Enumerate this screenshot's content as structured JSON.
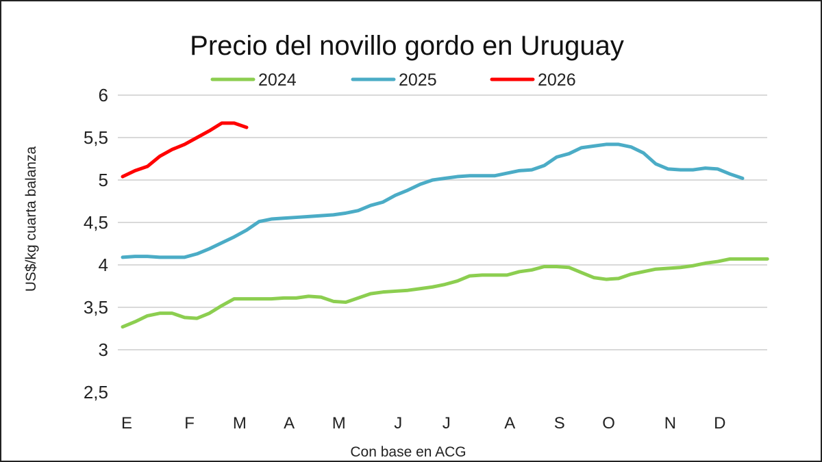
{
  "chart_data": {
    "type": "line",
    "title": "Precio del novillo gordo en Uruguay",
    "xlabel": "Con base en ACG",
    "ylabel": "US$/kg cuarta balanza",
    "ylim": [
      2.5,
      6
    ],
    "y_ticks": [
      "2,5",
      "3",
      "3,5",
      "4",
      "4,5",
      "5",
      "5,5",
      "6"
    ],
    "y_tick_values": [
      2.5,
      3,
      3.5,
      4,
      4.5,
      5,
      5.5,
      6
    ],
    "x_ticks": [
      {
        "label": "E",
        "week": 0
      },
      {
        "label": "F",
        "week": 5.1
      },
      {
        "label": "M",
        "week": 9
      },
      {
        "label": "A",
        "week": 13.1
      },
      {
        "label": "M",
        "week": 17
      },
      {
        "label": "J",
        "week": 22
      },
      {
        "label": "J",
        "week": 25.9
      },
      {
        "label": "A",
        "week": 30.9
      },
      {
        "label": "S",
        "week": 34.9
      },
      {
        "label": "O",
        "week": 38.8
      },
      {
        "label": "N",
        "week": 43.8
      },
      {
        "label": "D",
        "week": 47.8
      }
    ],
    "grid": true,
    "legend": "top",
    "series": [
      {
        "name": "2024",
        "color": "#8cce50",
        "values": [
          3.27,
          3.33,
          3.4,
          3.43,
          3.43,
          3.38,
          3.37,
          3.43,
          3.52,
          3.6,
          3.6,
          3.6,
          3.6,
          3.61,
          3.61,
          3.63,
          3.62,
          3.57,
          3.56,
          3.61,
          3.66,
          3.68,
          3.69,
          3.7,
          3.72,
          3.74,
          3.77,
          3.81,
          3.87,
          3.88,
          3.88,
          3.88,
          3.92,
          3.94,
          3.98,
          3.98,
          3.97,
          3.91,
          3.85,
          3.83,
          3.84,
          3.89,
          3.92,
          3.95,
          3.96,
          3.97,
          3.99,
          4.02,
          4.04,
          4.07,
          4.07,
          4.07,
          4.07
        ]
      },
      {
        "name": "2025",
        "color": "#4bacc6",
        "values": [
          4.09,
          4.1,
          4.1,
          4.09,
          4.09,
          4.09,
          4.13,
          4.19,
          4.26,
          4.33,
          4.41,
          4.51,
          4.54,
          4.55,
          4.56,
          4.57,
          4.58,
          4.59,
          4.61,
          4.64,
          4.7,
          4.74,
          4.82,
          4.88,
          4.95,
          5.0,
          5.02,
          5.04,
          5.05,
          5.05,
          5.05,
          5.08,
          5.11,
          5.12,
          5.17,
          5.27,
          5.31,
          5.38,
          5.4,
          5.42,
          5.42,
          5.39,
          5.32,
          5.19,
          5.13,
          5.12,
          5.12,
          5.14,
          5.13,
          5.07,
          5.02
        ]
      },
      {
        "name": "2026",
        "color": "#ff0000",
        "values": [
          5.04,
          5.11,
          5.16,
          5.28,
          5.36,
          5.42,
          5.5,
          5.58,
          5.67,
          5.67,
          5.62
        ]
      }
    ]
  }
}
